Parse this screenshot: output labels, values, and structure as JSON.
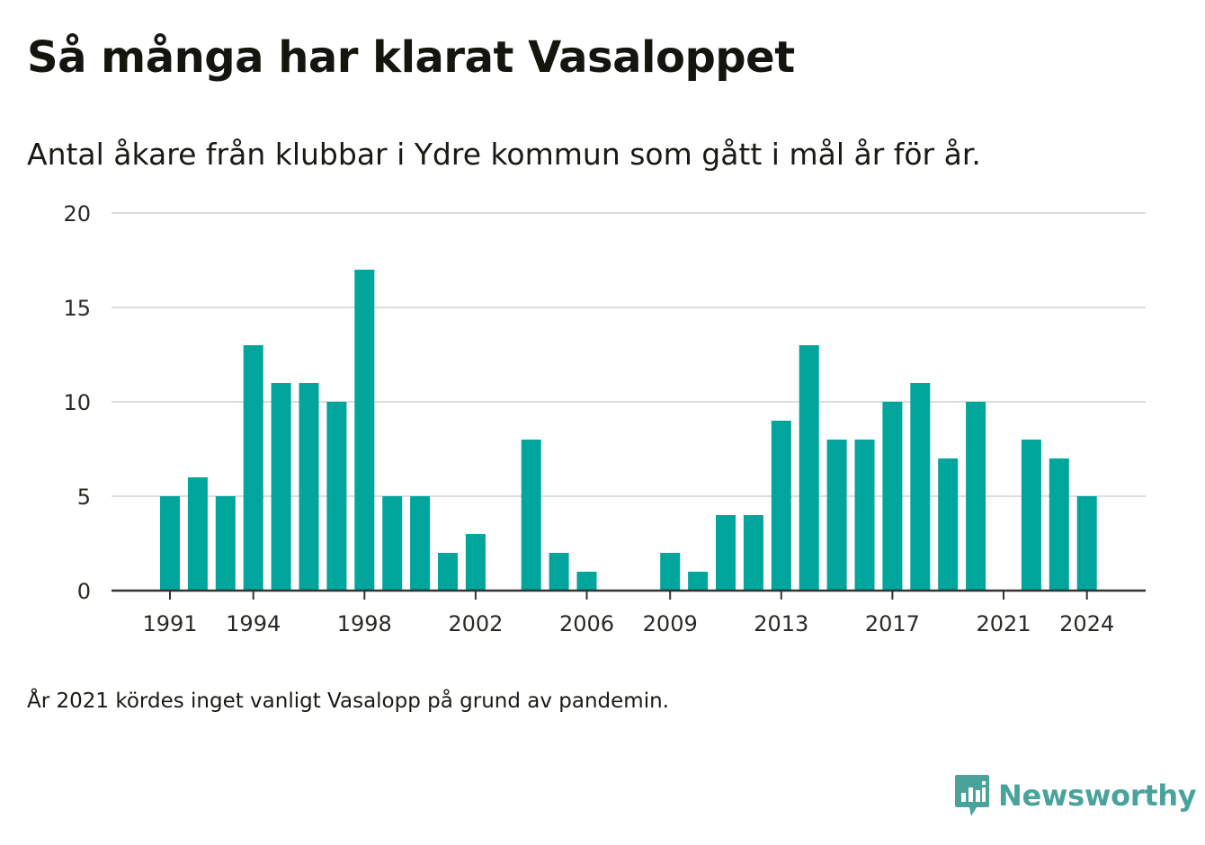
{
  "title": "Så många har klarat Vasaloppet",
  "subtitle": "Antal åkare från klubbar i Ydre kommun som gått i mål år för år.",
  "footnote": "År 2021 kördes inget vanligt Vasalopp på grund av pandemin.",
  "brand": {
    "name": "Newsworthy",
    "icon": "newsworthy-logo-icon",
    "color": "#4aa39b"
  },
  "chart_data": {
    "type": "bar",
    "title": "Så många har klarat Vasaloppet",
    "subtitle": "Antal åkare från klubbar i Ydre kommun som gått i mål år för år.",
    "xlabel": "",
    "ylabel": "",
    "color": "#00a69c",
    "grid": true,
    "ylim": [
      0,
      20
    ],
    "yticks": [
      "0",
      "5",
      "10",
      "15",
      "20"
    ],
    "xticks": [
      "1991",
      "1994",
      "1998",
      "2002",
      "2006",
      "2009",
      "2013",
      "2017",
      "2021",
      "2024"
    ],
    "categories": [
      "1991",
      "1992",
      "1993",
      "1994",
      "1995",
      "1996",
      "1997",
      "1998",
      "1999",
      "2000",
      "2001",
      "2002",
      "2003",
      "2004",
      "2005",
      "2006",
      "2007",
      "2008",
      "2009",
      "2010",
      "2011",
      "2012",
      "2013",
      "2014",
      "2015",
      "2016",
      "2017",
      "2018",
      "2019",
      "2020",
      "2021",
      "2022",
      "2023",
      "2024"
    ],
    "values": [
      5,
      6,
      5,
      13,
      11,
      11,
      10,
      17,
      5,
      5,
      2,
      3,
      0,
      8,
      2,
      1,
      0,
      0,
      2,
      1,
      4,
      4,
      9,
      13,
      8,
      8,
      10,
      11,
      7,
      10,
      0,
      8,
      7,
      5
    ]
  }
}
